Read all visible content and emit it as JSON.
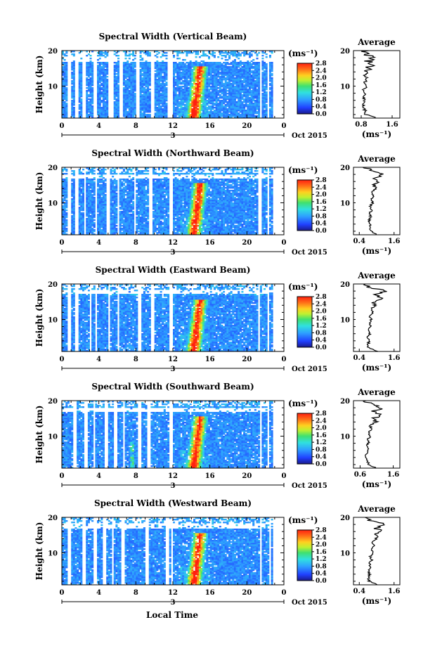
{
  "figure": {
    "xlabel": "Local Time",
    "date_label": "Oct 2015",
    "day_label": "3",
    "avg_title": "Average",
    "units": "(ms⁻¹)"
  },
  "chart_data": [
    {
      "type": "heatmap",
      "title": "Spectral Width (Vertical Beam)",
      "ylabel": "Height (km)",
      "xlim": [
        0,
        24
      ],
      "ylim": [
        1,
        20
      ],
      "x_ticks": [
        "0",
        "4",
        "8",
        "12",
        "16",
        "20",
        "0"
      ],
      "y_ticks": [
        "10",
        "20"
      ],
      "colorbar": {
        "label": "(ms⁻¹)",
        "range": [
          0,
          2.8
        ],
        "ticks": [
          "2.8",
          "2.4",
          "2.0",
          "1.6",
          "1.2",
          "0.8",
          "0.4",
          "0.0"
        ]
      },
      "average_profile": {
        "title": "Average",
        "xlabel": "(ms⁻¹)",
        "x_ticks": [
          "0.8",
          "1.6"
        ],
        "xlim": [
          0.6,
          1.8
        ],
        "y_ticks": [
          "10",
          "20"
        ],
        "height_km": [
          1,
          2,
          3,
          4,
          5,
          6,
          7,
          8,
          9,
          10,
          11,
          12,
          13,
          14,
          15,
          16,
          17,
          18,
          19,
          20
        ],
        "values": [
          1.2,
          0.92,
          0.9,
          0.88,
          0.86,
          0.9,
          0.84,
          0.92,
          0.86,
          0.94,
          0.88,
          0.96,
          0.9,
          1.0,
          0.94,
          1.06,
          0.98,
          1.08,
          0.94,
          0.9
        ]
      }
    },
    {
      "type": "heatmap",
      "title": "Spectral Width (Northward Beam)",
      "ylabel": "Height (km)",
      "xlim": [
        0,
        24
      ],
      "ylim": [
        1,
        20
      ],
      "x_ticks": [
        "0",
        "4",
        "8",
        "12",
        "16",
        "20",
        "0"
      ],
      "y_ticks": [
        "10",
        "20"
      ],
      "colorbar": {
        "label": "(ms⁻¹)",
        "range": [
          0,
          2.8
        ],
        "ticks": [
          "2.8",
          "2.4",
          "2.0",
          "1.6",
          "1.2",
          "0.8",
          "0.4",
          "0.0"
        ]
      },
      "average_profile": {
        "title": "Average",
        "xlabel": "(ms⁻¹)",
        "x_ticks": [
          "0.4",
          "1.6"
        ],
        "xlim": [
          0.2,
          1.8
        ],
        "y_ticks": [
          "10",
          "20"
        ],
        "height_km": [
          1,
          2,
          3,
          4,
          5,
          6,
          7,
          8,
          9,
          10,
          11,
          12,
          13,
          14,
          15,
          16,
          17,
          18,
          19,
          20
        ],
        "values": [
          1.0,
          0.8,
          0.76,
          0.78,
          0.74,
          0.8,
          0.76,
          0.84,
          0.78,
          0.86,
          0.8,
          0.9,
          0.84,
          0.98,
          0.92,
          1.1,
          0.96,
          1.16,
          0.82,
          0.6
        ]
      }
    },
    {
      "type": "heatmap",
      "title": "Spectral Width (Eastward Beam)",
      "ylabel": "Height (km)",
      "xlim": [
        0,
        24
      ],
      "ylim": [
        1,
        20
      ],
      "x_ticks": [
        "0",
        "4",
        "8",
        "12",
        "16",
        "20",
        "0"
      ],
      "y_ticks": [
        "10",
        "20"
      ],
      "colorbar": {
        "label": "(ms⁻¹)",
        "range": [
          0,
          2.8
        ],
        "ticks": [
          "2.8",
          "2.4",
          "2.0",
          "1.6",
          "1.2",
          "0.8",
          "0.4",
          "0.0"
        ]
      },
      "average_profile": {
        "title": "Average",
        "xlabel": "(ms⁻¹)",
        "x_ticks": [
          "0.4",
          "1.6"
        ],
        "xlim": [
          0.2,
          1.8
        ],
        "y_ticks": [
          "10",
          "20"
        ],
        "height_km": [
          1,
          2,
          3,
          4,
          5,
          6,
          7,
          8,
          9,
          10,
          11,
          12,
          13,
          14,
          15,
          16,
          17,
          18,
          19,
          20
        ],
        "values": [
          1.05,
          0.72,
          0.7,
          0.74,
          0.7,
          0.76,
          0.72,
          0.8,
          0.74,
          0.82,
          0.76,
          0.86,
          0.8,
          0.96,
          0.88,
          1.22,
          0.92,
          1.3,
          0.78,
          0.55
        ]
      }
    },
    {
      "type": "heatmap",
      "title": "Spectral Width (Southward Beam)",
      "ylabel": "Height (km)",
      "xlim": [
        0,
        24
      ],
      "ylim": [
        1,
        20
      ],
      "x_ticks": [
        "0",
        "4",
        "8",
        "12",
        "16",
        "20",
        "0"
      ],
      "y_ticks": [
        "10",
        "20"
      ],
      "colorbar": {
        "label": "(ms⁻¹)",
        "range": [
          0,
          2.8
        ],
        "ticks": [
          "2.8",
          "2.4",
          "2.0",
          "1.6",
          "1.2",
          "0.8",
          "0.4",
          "0.0"
        ]
      },
      "average_profile": {
        "title": "Average",
        "xlabel": "(ms⁻¹)",
        "x_ticks": [
          "0.6",
          "1.6"
        ],
        "xlim": [
          0.4,
          1.8
        ],
        "y_ticks": [
          "10",
          "20"
        ],
        "height_km": [
          1,
          2,
          3,
          4,
          5,
          6,
          7,
          8,
          9,
          10,
          11,
          12,
          13,
          14,
          15,
          16,
          17,
          18,
          19,
          20
        ],
        "values": [
          1.1,
          0.86,
          0.82,
          0.8,
          0.78,
          0.84,
          0.8,
          0.86,
          0.82,
          0.9,
          0.86,
          0.96,
          0.9,
          1.08,
          0.98,
          1.2,
          1.04,
          1.24,
          0.92,
          0.7
        ]
      }
    },
    {
      "type": "heatmap",
      "title": "Spectral Width (Westward Beam)",
      "ylabel": "Height (km)",
      "xlim": [
        0,
        24
      ],
      "ylim": [
        1,
        20
      ],
      "x_ticks": [
        "0",
        "4",
        "8",
        "12",
        "16",
        "20",
        "0"
      ],
      "y_ticks": [
        "10",
        "20"
      ],
      "colorbar": {
        "label": "(ms⁻¹)",
        "range": [
          0,
          2.8
        ],
        "ticks": [
          "2.8",
          "2.4",
          "2.0",
          "1.6",
          "1.2",
          "0.8",
          "0.4",
          "0.0"
        ]
      },
      "average_profile": {
        "title": "Average",
        "xlabel": "(ms⁻¹)",
        "x_ticks": [
          "0.4",
          "1.6"
        ],
        "xlim": [
          0.2,
          1.8
        ],
        "y_ticks": [
          "10",
          "20"
        ],
        "height_km": [
          1,
          2,
          3,
          4,
          5,
          6,
          7,
          8,
          9,
          10,
          11,
          12,
          13,
          14,
          15,
          16,
          17,
          18,
          19,
          20
        ],
        "values": [
          1.02,
          0.74,
          0.72,
          0.76,
          0.72,
          0.78,
          0.74,
          0.84,
          0.78,
          0.86,
          0.8,
          0.92,
          0.84,
          1.0,
          0.92,
          1.18,
          0.96,
          1.34,
          0.8,
          0.58
        ]
      }
    }
  ]
}
